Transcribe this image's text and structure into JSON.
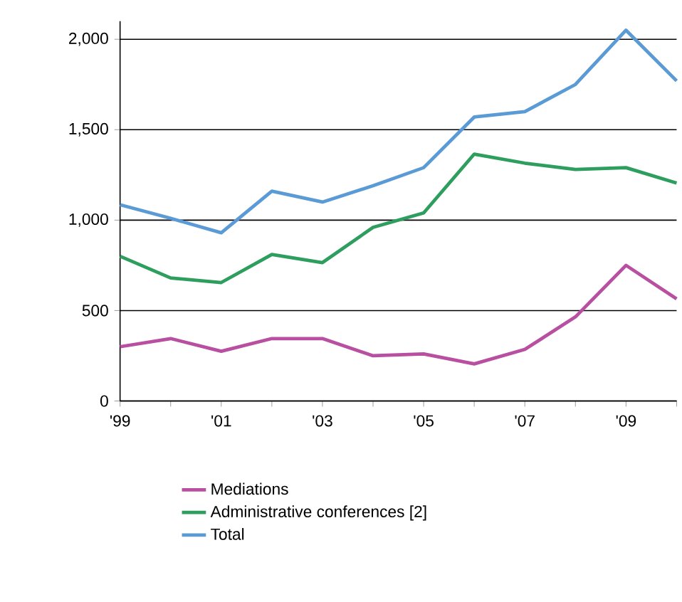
{
  "chart_data": {
    "type": "line",
    "x": [
      1999,
      2000,
      2001,
      2002,
      2003,
      2004,
      2005,
      2006,
      2007,
      2008,
      2009,
      2010
    ],
    "xlim": [
      1999,
      2010
    ],
    "xticks": [
      {
        "value": 1999,
        "label": "'99"
      },
      {
        "value": 2000,
        "label": null
      },
      {
        "value": 2001,
        "label": "'01"
      },
      {
        "value": 2002,
        "label": null
      },
      {
        "value": 2003,
        "label": "'03"
      },
      {
        "value": 2004,
        "label": null
      },
      {
        "value": 2005,
        "label": "'05"
      },
      {
        "value": 2006,
        "label": null
      },
      {
        "value": 2007,
        "label": "'07"
      },
      {
        "value": 2008,
        "label": null
      },
      {
        "value": 2009,
        "label": "'09"
      },
      {
        "value": 2010,
        "label": null
      }
    ],
    "ylim": [
      0,
      2100
    ],
    "yticks": [
      0,
      {
        "value": 500,
        "label": "500"
      },
      {
        "value": 1000,
        "label": "1,000"
      },
      {
        "value": 1500,
        "label": "1,500"
      },
      {
        "value": 2000,
        "label": "2,000"
      }
    ],
    "grid": "y",
    "legend": "bottom",
    "marker": "none",
    "line_style": "solid",
    "series": [
      {
        "name": "Mediations",
        "color": "#b84fa0",
        "values": [
          300,
          345,
          275,
          345,
          345,
          250,
          260,
          205,
          285,
          465,
          750,
          565
        ]
      },
      {
        "name": "Administrative conferences [2]",
        "color": "#2e9e5e",
        "values": [
          800,
          680,
          655,
          810,
          765,
          960,
          1040,
          1365,
          1315,
          1280,
          1290,
          1205
        ]
      },
      {
        "name": "Total",
        "color": "#5b9bd5",
        "values": [
          1085,
          1010,
          930,
          1160,
          1100,
          1190,
          1290,
          1570,
          1600,
          1750,
          2050,
          1770
        ]
      }
    ]
  }
}
